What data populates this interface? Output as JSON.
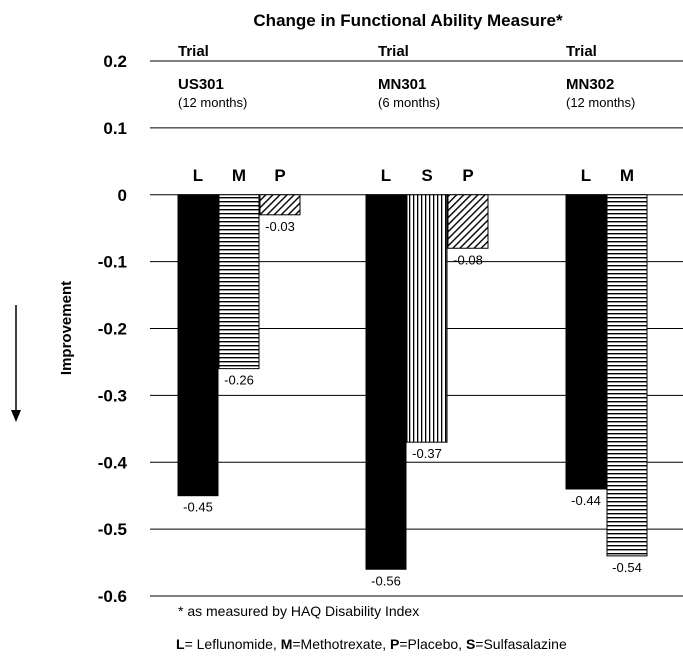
{
  "chart_data": {
    "type": "bar",
    "title": "Change in Functional Ability Measure*",
    "ylabel": "Improvement",
    "ylim": [
      -0.6,
      0.2
    ],
    "yticks": [
      0.2,
      0.1,
      0,
      -0.1,
      -0.2,
      -0.3,
      -0.4,
      -0.5,
      -0.6
    ],
    "grid": true,
    "groups": [
      {
        "header": "Trial",
        "name": "US301",
        "duration": "(12 months)",
        "bars": [
          {
            "label": "L",
            "value": -0.45,
            "value_label": "-0.45",
            "pattern": "solid"
          },
          {
            "label": "M",
            "value": -0.26,
            "value_label": "-0.26",
            "pattern": "horizontal"
          },
          {
            "label": "P",
            "value": -0.03,
            "value_label": "-0.03",
            "pattern": "diagonal"
          }
        ]
      },
      {
        "header": "Trial",
        "name": "MN301",
        "duration": "(6 months)",
        "bars": [
          {
            "label": "L",
            "value": -0.56,
            "value_label": "-0.56",
            "pattern": "solid"
          },
          {
            "label": "S",
            "value": -0.37,
            "value_label": "-0.37",
            "pattern": "vertical"
          },
          {
            "label": "P",
            "value": -0.08,
            "value_label": "-0.08",
            "pattern": "diagonal"
          }
        ]
      },
      {
        "header": "Trial",
        "name": "MN302",
        "duration": "(12 months)",
        "bars": [
          {
            "label": "L",
            "value": -0.44,
            "value_label": "-0.44",
            "pattern": "solid"
          },
          {
            "label": "M",
            "value": -0.54,
            "value_label": "-0.54",
            "pattern": "horizontal"
          }
        ]
      }
    ],
    "footnote": "* as measured by HAQ Disability Index",
    "legend": [
      {
        "key": "L",
        "text": "= Leflunomide, "
      },
      {
        "key": "M",
        "text": "=Methotrexate, "
      },
      {
        "key": "P",
        "text": "=Placebo, "
      },
      {
        "key": "S",
        "text": "=Sulfasalazine"
      }
    ]
  }
}
